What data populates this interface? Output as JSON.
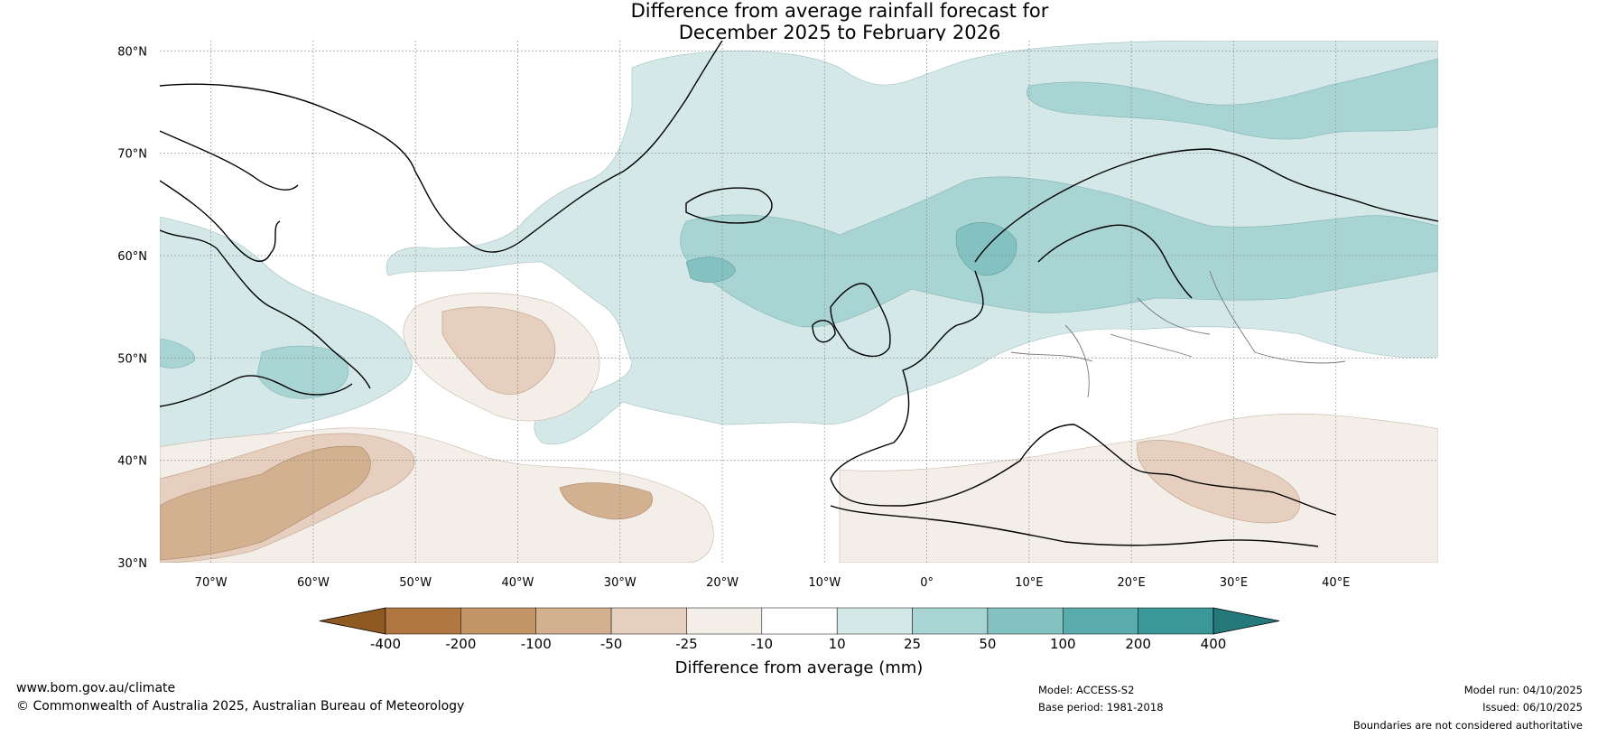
{
  "title": {
    "line1": "Difference from average rainfall forecast for",
    "line2": "December 2025 to February 2026"
  },
  "map": {
    "lat_labels": [
      "80°N",
      "70°N",
      "60°N",
      "50°N",
      "40°N",
      "30°N"
    ],
    "lon_labels": [
      "70°W",
      "60°W",
      "50°W",
      "40°W",
      "30°W",
      "20°W",
      "10°W",
      "0°",
      "10°E",
      "20°E",
      "30°E",
      "40°E"
    ],
    "lat_range": [
      30,
      81
    ],
    "lon_range": [
      -75,
      50
    ]
  },
  "colorbar": {
    "ticks": [
      "-400",
      "-200",
      "-100",
      "-50",
      "-25",
      "-10",
      "10",
      "25",
      "50",
      "100",
      "200",
      "400"
    ],
    "colors": [
      "#8f5a22",
      "#b07740",
      "#c49566",
      "#d3b08f",
      "#e6cfbe",
      "#f3eee8",
      "#ffffff",
      "#d5e8e8",
      "#a9d4d4",
      "#84c2c2",
      "#5aabab",
      "#3a9898",
      "#26797a"
    ],
    "label": "Difference from average (mm)"
  },
  "footer": {
    "website": "www.bom.gov.au/climate",
    "copyright": "© Commonwealth of Australia 2025, Australian Bureau of Meteorology",
    "model": "Model: ACCESS-S2",
    "base_period": "Base period: 1981-2018",
    "model_run": "Model run: 04/10/2025",
    "issued": "Issued: 06/10/2025",
    "disclaimer": "Boundaries are not considered authoritative"
  }
}
